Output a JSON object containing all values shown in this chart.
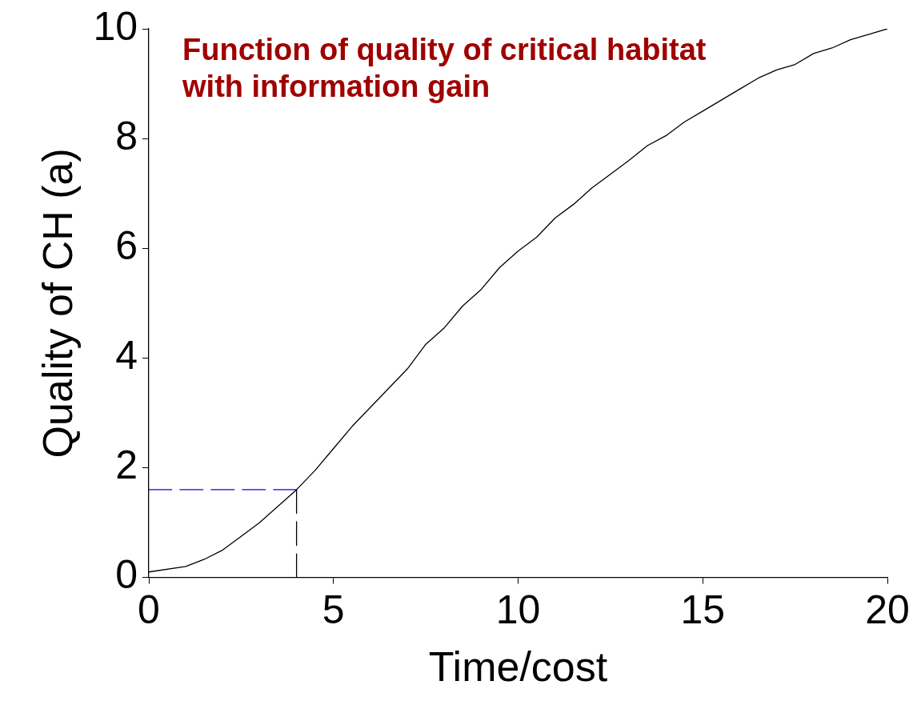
{
  "chart_data": {
    "type": "line",
    "xlabel": "Time/cost",
    "ylabel": "Quality of CH (a)",
    "annotations": [
      "Function of quality of critical habitat with information gain"
    ],
    "xlim": [
      0,
      20
    ],
    "xticks": [
      0,
      5,
      10,
      15,
      20
    ],
    "ylim": [
      0,
      10
    ],
    "yticks": [
      0,
      2,
      4,
      6,
      8,
      10
    ],
    "grid": false,
    "legend": false,
    "marker": "none",
    "series": [
      {
        "color": "#000000",
        "line_style": "solid",
        "x": [
          0,
          1,
          1.5,
          2,
          2.5,
          3,
          3.5,
          4,
          4.5,
          5,
          5.5,
          6,
          6.5,
          7,
          7.5,
          8,
          8.5,
          9,
          9.5,
          10,
          10.5,
          11,
          11.5,
          12,
          12.5,
          13,
          13.5,
          14,
          14.5,
          15,
          15.5,
          16,
          16.5,
          17,
          17.5,
          18,
          18.5,
          19,
          19.5,
          20
        ],
        "values": [
          0.1,
          0.2,
          0.33,
          0.5,
          0.75,
          1.0,
          1.3,
          1.6,
          1.95,
          2.35,
          2.75,
          3.1,
          3.45,
          3.8,
          4.25,
          4.55,
          4.95,
          5.25,
          5.65,
          5.95,
          6.2,
          6.55,
          6.8,
          7.1,
          7.35,
          7.6,
          7.87,
          8.05,
          8.3,
          8.5,
          8.7,
          8.9,
          9.1,
          9.25,
          9.35,
          9.55,
          9.65,
          9.8,
          9.9,
          10
        ]
      },
      {
        "color": "#0000ff",
        "line_style": "dashed",
        "x": [
          0,
          4
        ],
        "values": [
          1.6,
          1.6
        ]
      },
      {
        "color": "#000000",
        "line_style": "dashed",
        "x": [
          4,
          4
        ],
        "values": [
          0,
          1.6
        ]
      }
    ]
  }
}
